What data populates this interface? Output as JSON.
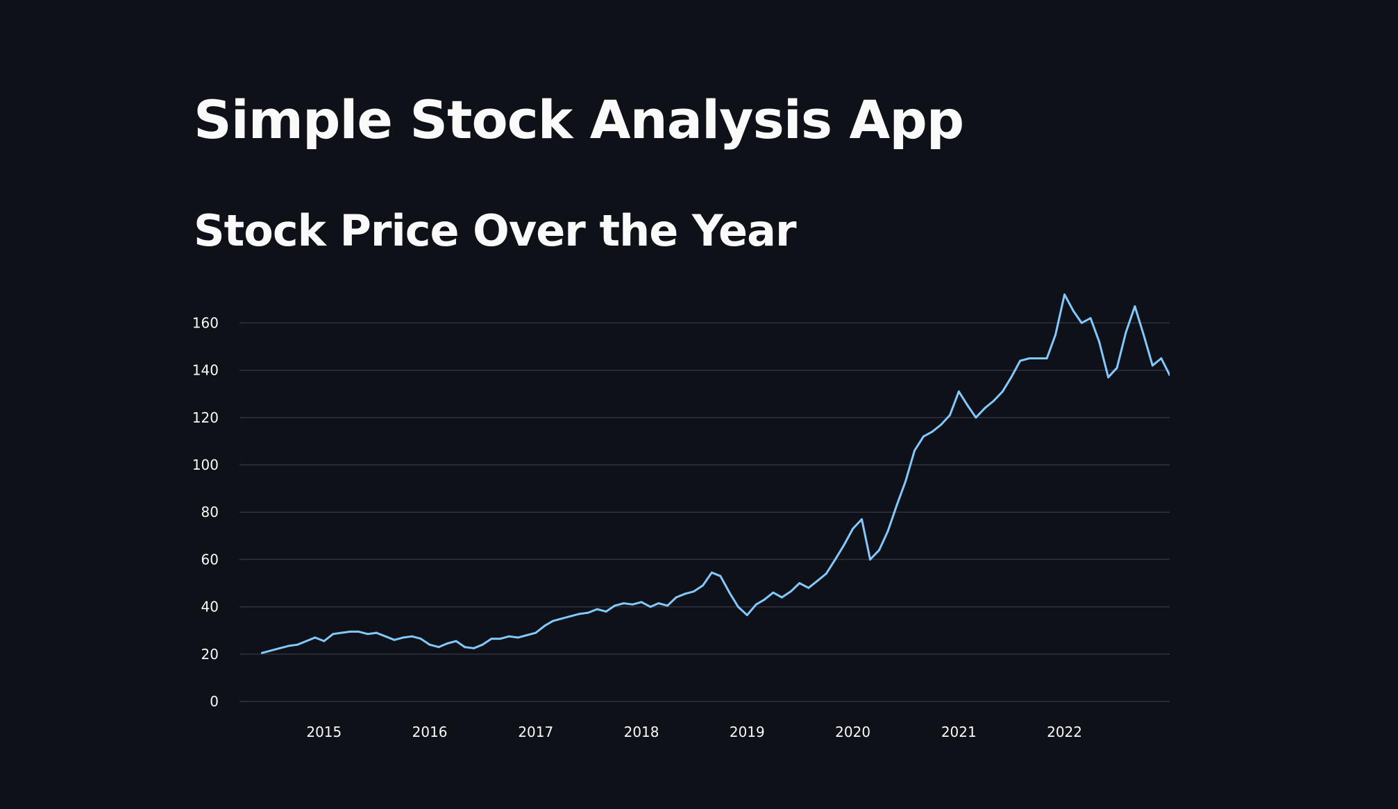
{
  "app": {
    "title": "Simple Stock Analysis App",
    "subheader": "Stock Price Over the Year"
  },
  "colors": {
    "background": "#0e1117",
    "text": "#fafafa",
    "grid": "#31333f",
    "line": "#83c9ff"
  },
  "chart_data": {
    "type": "line",
    "title": "",
    "xlabel": "",
    "ylabel": "",
    "x_type": "date",
    "xlim": [
      "2014-03-15",
      "2022-12-30"
    ],
    "ylim": [
      0,
      176
    ],
    "y_ticks": [
      0,
      20,
      40,
      60,
      80,
      100,
      120,
      140,
      160
    ],
    "x_ticks": [
      "2015",
      "2016",
      "2017",
      "2018",
      "2019",
      "2020",
      "2021",
      "2022"
    ],
    "x_tick_dates": [
      "2015-01-01",
      "2016-01-01",
      "2017-01-01",
      "2018-01-01",
      "2019-01-01",
      "2020-01-01",
      "2021-01-01",
      "2022-01-01"
    ],
    "grid": true,
    "legend": "none",
    "series": [
      {
        "x": [
          "2014-06-01",
          "2014-07-01",
          "2014-08-01",
          "2014-09-01",
          "2014-10-01",
          "2014-11-01",
          "2014-12-01",
          "2015-01-01",
          "2015-02-01",
          "2015-03-01",
          "2015-04-01",
          "2015-05-01",
          "2015-06-01",
          "2015-07-01",
          "2015-08-01",
          "2015-09-01",
          "2015-10-01",
          "2015-11-01",
          "2015-12-01",
          "2016-01-01",
          "2016-02-01",
          "2016-03-01",
          "2016-04-01",
          "2016-05-01",
          "2016-06-01",
          "2016-07-01",
          "2016-08-01",
          "2016-09-01",
          "2016-10-01",
          "2016-11-01",
          "2016-12-01",
          "2017-01-01",
          "2017-02-01",
          "2017-03-01",
          "2017-04-01",
          "2017-05-01",
          "2017-06-01",
          "2017-07-01",
          "2017-08-01",
          "2017-09-01",
          "2017-10-01",
          "2017-11-01",
          "2017-12-01",
          "2018-01-01",
          "2018-02-01",
          "2018-03-01",
          "2018-04-01",
          "2018-05-01",
          "2018-06-01",
          "2018-07-01",
          "2018-08-01",
          "2018-09-01",
          "2018-10-01",
          "2018-11-01",
          "2018-12-01",
          "2019-01-01",
          "2019-02-01",
          "2019-03-01",
          "2019-04-01",
          "2019-05-01",
          "2019-06-01",
          "2019-07-01",
          "2019-08-01",
          "2019-09-01",
          "2019-10-01",
          "2019-11-01",
          "2019-12-01",
          "2020-01-01",
          "2020-02-01",
          "2020-03-01",
          "2020-04-01",
          "2020-05-01",
          "2020-06-01",
          "2020-07-01",
          "2020-08-01",
          "2020-09-01",
          "2020-10-01",
          "2020-11-01",
          "2020-12-01",
          "2021-01-01",
          "2021-02-01",
          "2021-03-01",
          "2021-04-01",
          "2021-05-01",
          "2021-06-01",
          "2021-07-01",
          "2021-08-01",
          "2021-09-01",
          "2021-10-01",
          "2021-11-01",
          "2021-12-01",
          "2022-01-01",
          "2022-02-01",
          "2022-03-01",
          "2022-04-01",
          "2022-05-01",
          "2022-06-01",
          "2022-07-01",
          "2022-08-01",
          "2022-09-01",
          "2022-10-01",
          "2022-11-01",
          "2022-12-01",
          "2022-12-30"
        ],
        "y": [
          20.5,
          21.5,
          22.5,
          23.5,
          24,
          25.5,
          27,
          25.5,
          28.5,
          29,
          29.5,
          29.5,
          28.5,
          29,
          27.5,
          26,
          27,
          27.5,
          26.5,
          24,
          23,
          24.5,
          25.5,
          23,
          22.5,
          24,
          26.5,
          26.5,
          27.5,
          27,
          28,
          29,
          32,
          34,
          35,
          36,
          37,
          37.5,
          39,
          38,
          40.5,
          41.5,
          41,
          42,
          40,
          41.5,
          40.5,
          44,
          45.5,
          46.5,
          49,
          54.5,
          53,
          46,
          40,
          36.5,
          41,
          43,
          46,
          44,
          46.5,
          50,
          48,
          51,
          54,
          60,
          66,
          73,
          77,
          60,
          64,
          72,
          83,
          93,
          106,
          112,
          114,
          117,
          121,
          131,
          125,
          120,
          124,
          127,
          131,
          137,
          144,
          145,
          145,
          145,
          155,
          172,
          165,
          160,
          162,
          152,
          137,
          141,
          156,
          167,
          155,
          142,
          145,
          138
        ]
      }
    ]
  }
}
